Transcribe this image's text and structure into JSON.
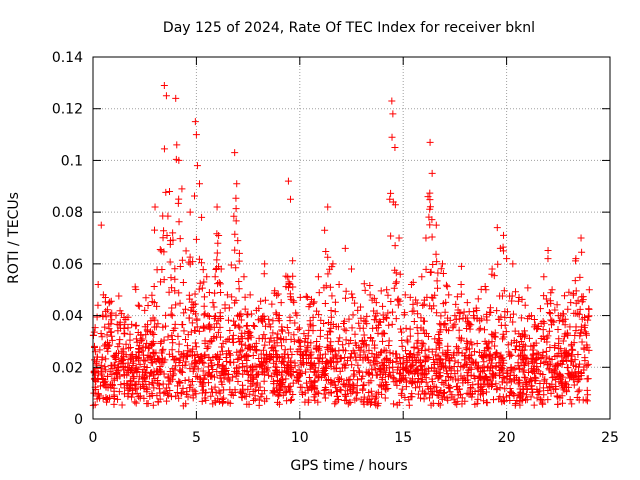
{
  "chart_data": {
    "type": "scatter",
    "title": "Day 125 of 2024, Rate Of TEC Index for receiver bknl",
    "xlabel": "GPS time / hours",
    "ylabel": "ROTI / TECUs",
    "xlim": [
      0,
      25
    ],
    "ylim": [
      0,
      0.14
    ],
    "xticks": [
      0,
      5,
      10,
      15,
      20,
      25
    ],
    "yticks": [
      0,
      0.02,
      0.04,
      0.06,
      0.08,
      0.1,
      0.12,
      0.14
    ],
    "xtick_labels": [
      "0",
      "5",
      "10",
      "15",
      "20",
      "25"
    ],
    "ytick_labels": [
      "0",
      "0.02",
      "0.04",
      "0.06",
      "0.08",
      "0.1",
      "0.12",
      "0.14"
    ],
    "grid": true,
    "marker": "plus",
    "color": "#ff0000",
    "series": [
      {
        "x": [
          0.1,
          0.25,
          0.4,
          0.6,
          0.9,
          1.2,
          1.5,
          1.8,
          2.1,
          2.5,
          2.8,
          3.0,
          3.3,
          3.45,
          3.55,
          3.7,
          3.85,
          4.0,
          4.05,
          4.15,
          4.3,
          4.5,
          4.7,
          4.95,
          5.0,
          5.05,
          5.15,
          5.25,
          5.5,
          5.8,
          6.0,
          6.2,
          6.5,
          6.85,
          6.95,
          7.0,
          7.3,
          7.6,
          7.9,
          8.3,
          8.7,
          9.1,
          9.45,
          9.55,
          9.8,
          10.2,
          10.5,
          10.9,
          11.2,
          11.35,
          11.6,
          11.9,
          12.2,
          12.5,
          12.8,
          13.1,
          13.4,
          13.7,
          14.0,
          14.2,
          14.35,
          14.45,
          14.5,
          14.6,
          14.8,
          15.1,
          15.4,
          15.6,
          15.9,
          16.1,
          16.2,
          16.3,
          16.4,
          16.6,
          16.9,
          17.2,
          17.5,
          17.8,
          18.1,
          18.4,
          18.7,
          19.0,
          19.3,
          19.55,
          19.7,
          19.85,
          20.0,
          20.3,
          20.6,
          20.9,
          21.2,
          21.5,
          21.8,
          22.0,
          22.2,
          22.5,
          22.8,
          23.1,
          23.35,
          23.6,
          23.85,
          24.0
        ],
        "y": [
          0.018,
          0.052,
          0.075,
          0.047,
          0.032,
          0.028,
          0.035,
          0.024,
          0.031,
          0.042,
          0.038,
          0.082,
          0.065,
          0.129,
          0.125,
          0.088,
          0.072,
          0.124,
          0.106,
          0.1,
          0.089,
          0.065,
          0.08,
          0.115,
          0.11,
          0.098,
          0.091,
          0.078,
          0.055,
          0.045,
          0.082,
          0.058,
          0.048,
          0.103,
          0.091,
          0.069,
          0.055,
          0.048,
          0.042,
          0.06,
          0.038,
          0.045,
          0.092,
          0.085,
          0.041,
          0.033,
          0.038,
          0.055,
          0.073,
          0.082,
          0.06,
          0.052,
          0.066,
          0.058,
          0.042,
          0.038,
          0.048,
          0.045,
          0.03,
          0.05,
          0.085,
          0.123,
          0.118,
          0.105,
          0.07,
          0.048,
          0.052,
          0.046,
          0.055,
          0.07,
          0.086,
          0.107,
          0.095,
          0.075,
          0.06,
          0.048,
          0.04,
          0.052,
          0.045,
          0.04,
          0.038,
          0.05,
          0.058,
          0.074,
          0.066,
          0.065,
          0.062,
          0.06,
          0.047,
          0.044,
          0.04,
          0.035,
          0.055,
          0.062,
          0.05,
          0.04,
          0.032,
          0.045,
          0.062,
          0.07,
          0.033,
          0.05
        ]
      }
    ]
  }
}
